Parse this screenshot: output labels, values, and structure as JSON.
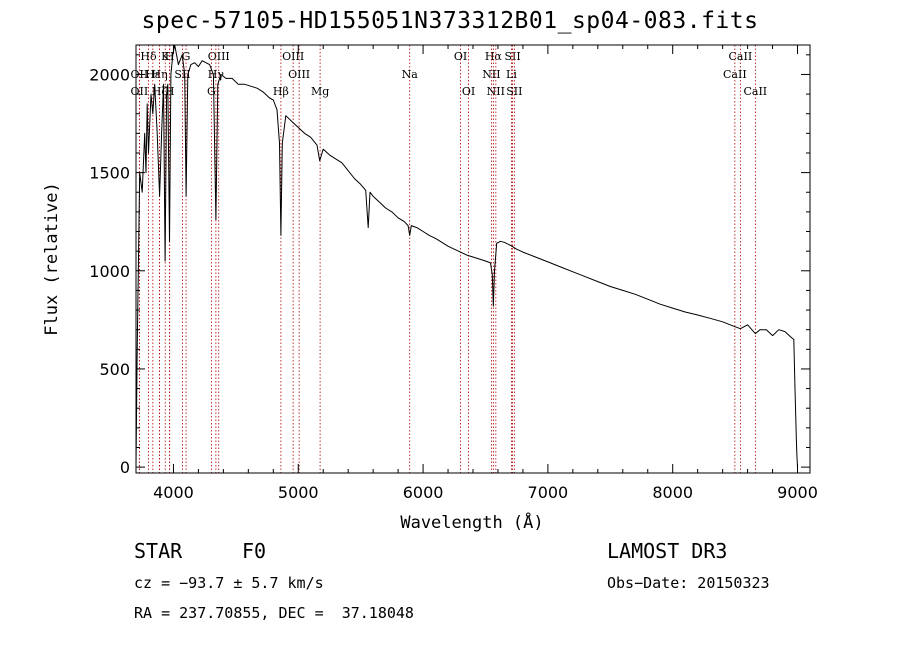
{
  "chart_data": {
    "type": "line",
    "title": "spec-57105-HD155051N373312B01_sp04-083.fits",
    "xlabel": "Wavelength (Å)",
    "ylabel": "Flux (relative)",
    "xlim": [
      3700,
      9100
    ],
    "ylim": [
      -30,
      2150
    ],
    "xticks": [
      4000,
      5000,
      6000,
      7000,
      8000,
      9000
    ],
    "yticks": [
      0,
      500,
      1000,
      1500,
      2000
    ],
    "series": [
      {
        "name": "spectrum",
        "x": [
          3700,
          3710,
          3730,
          3750,
          3770,
          3780,
          3790,
          3800,
          3820,
          3835,
          3850,
          3870,
          3889,
          3905,
          3920,
          3933,
          3945,
          3955,
          3968,
          3980,
          3995,
          4010,
          4040,
          4070,
          4090,
          4101,
          4115,
          4140,
          4170,
          4200,
          4230,
          4260,
          4290,
          4320,
          4340,
          4355,
          4380,
          4420,
          4470,
          4520,
          4570,
          4620,
          4670,
          4720,
          4770,
          4800,
          4830,
          4850,
          4861,
          4872,
          4900,
          4950,
          5000,
          5050,
          5100,
          5150,
          5172,
          5200,
          5250,
          5300,
          5350,
          5400,
          5450,
          5500,
          5540,
          5560,
          5575,
          5600,
          5650,
          5700,
          5750,
          5800,
          5850,
          5880,
          5893,
          5906,
          5950,
          6000,
          6050,
          6100,
          6150,
          6200,
          6250,
          6300,
          6350,
          6400,
          6450,
          6500,
          6540,
          6555,
          6563,
          6572,
          6590,
          6620,
          6650,
          6700,
          6750,
          6800,
          6900,
          7000,
          7100,
          7200,
          7300,
          7400,
          7500,
          7600,
          7700,
          7800,
          7900,
          8000,
          8100,
          8200,
          8300,
          8400,
          8498,
          8542,
          8600,
          8662,
          8700,
          8750,
          8800,
          8850,
          8900,
          8950,
          8970,
          8980,
          8990,
          8995,
          9000
        ],
        "values": [
          0,
          600,
          1500,
          1400,
          1700,
          1500,
          1850,
          1600,
          1900,
          1800,
          1950,
          1700,
          1380,
          1700,
          1950,
          1050,
          1900,
          1950,
          1150,
          2000,
          2100,
          2150,
          2050,
          2100,
          2000,
          1380,
          2000,
          2050,
          2060,
          2040,
          2070,
          2060,
          2050,
          2000,
          1260,
          1950,
          2000,
          1980,
          1980,
          1950,
          1950,
          1940,
          1930,
          1910,
          1880,
          1870,
          1820,
          1650,
          1180,
          1650,
          1790,
          1760,
          1730,
          1700,
          1680,
          1640,
          1560,
          1620,
          1590,
          1570,
          1550,
          1510,
          1470,
          1440,
          1410,
          1220,
          1400,
          1380,
          1350,
          1320,
          1300,
          1270,
          1250,
          1230,
          1180,
          1230,
          1220,
          1200,
          1180,
          1165,
          1145,
          1125,
          1110,
          1095,
          1080,
          1070,
          1060,
          1050,
          1040,
          980,
          820,
          1000,
          1140,
          1150,
          1145,
          1130,
          1110,
          1095,
          1070,
          1045,
          1020,
          995,
          970,
          945,
          920,
          900,
          880,
          855,
          830,
          810,
          790,
          775,
          758,
          740,
          715,
          705,
          725,
          680,
          700,
          700,
          670,
          700,
          690,
          660,
          650,
          400,
          150,
          60,
          0
        ]
      }
    ],
    "lines": [
      {
        "label": "Hδ",
        "wavelength": 3800,
        "row": 0
      },
      {
        "label": "K",
        "wavelength": 3934,
        "row": 0
      },
      {
        "label": "H",
        "wavelength": 3969,
        "row": 0
      },
      {
        "label": "G",
        "wavelength": 4101,
        "row": 0
      },
      {
        "label": "OIII",
        "wavelength": 4363,
        "row": 0
      },
      {
        "label": "OIII",
        "wavelength": 4959,
        "row": 0
      },
      {
        "label": "OI",
        "wavelength": 6300,
        "row": 0
      },
      {
        "label": "Hα",
        "wavelength": 6563,
        "row": 0
      },
      {
        "label": "SII",
        "wavelength": 6717,
        "row": 0
      },
      {
        "label": "CaII",
        "wavelength": 8542,
        "row": 0
      },
      {
        "label": "OII",
        "wavelength": 3727,
        "row": 1
      },
      {
        "label": "Hε",
        "wavelength": 3835,
        "row": 1
      },
      {
        "label": "Hη",
        "wavelength": 3889,
        "row": 1
      },
      {
        "label": "SII",
        "wavelength": 4072,
        "row": 1
      },
      {
        "label": "Hγ",
        "wavelength": 4340,
        "row": 1
      },
      {
        "label": "OIII",
        "wavelength": 5007,
        "row": 1
      },
      {
        "label": "Na",
        "wavelength": 5893,
        "row": 1
      },
      {
        "label": "NII",
        "wavelength": 6548,
        "row": 1
      },
      {
        "label": "Li",
        "wavelength": 6708,
        "row": 1
      },
      {
        "label": "CaII",
        "wavelength": 8498,
        "row": 1
      },
      {
        "label": "OII",
        "wavelength": 3727,
        "row": 2
      },
      {
        "label": "Hζ",
        "wavelength": 3889,
        "row": 2
      },
      {
        "label": "H",
        "wavelength": 3970,
        "row": 2
      },
      {
        "label": "G",
        "wavelength": 4304,
        "row": 2
      },
      {
        "label": "Hβ",
        "wavelength": 4861,
        "row": 2
      },
      {
        "label": "Mg",
        "wavelength": 5175,
        "row": 2
      },
      {
        "label": "OI",
        "wavelength": 6364,
        "row": 2
      },
      {
        "label": "NII",
        "wavelength": 6583,
        "row": 2
      },
      {
        "label": "SII",
        "wavelength": 6731,
        "row": 2
      },
      {
        "label": "CaII",
        "wavelength": 8662,
        "row": 2
      }
    ]
  },
  "info": {
    "object_class": "STAR",
    "subclass": "F0",
    "survey": "LAMOST DR3",
    "cz": "cz = −93.7 ± 5.7 km/s",
    "obs_date": "Obs−Date: 20150323",
    "coords": "RA = 237.70855, DEC =  37.18048"
  }
}
